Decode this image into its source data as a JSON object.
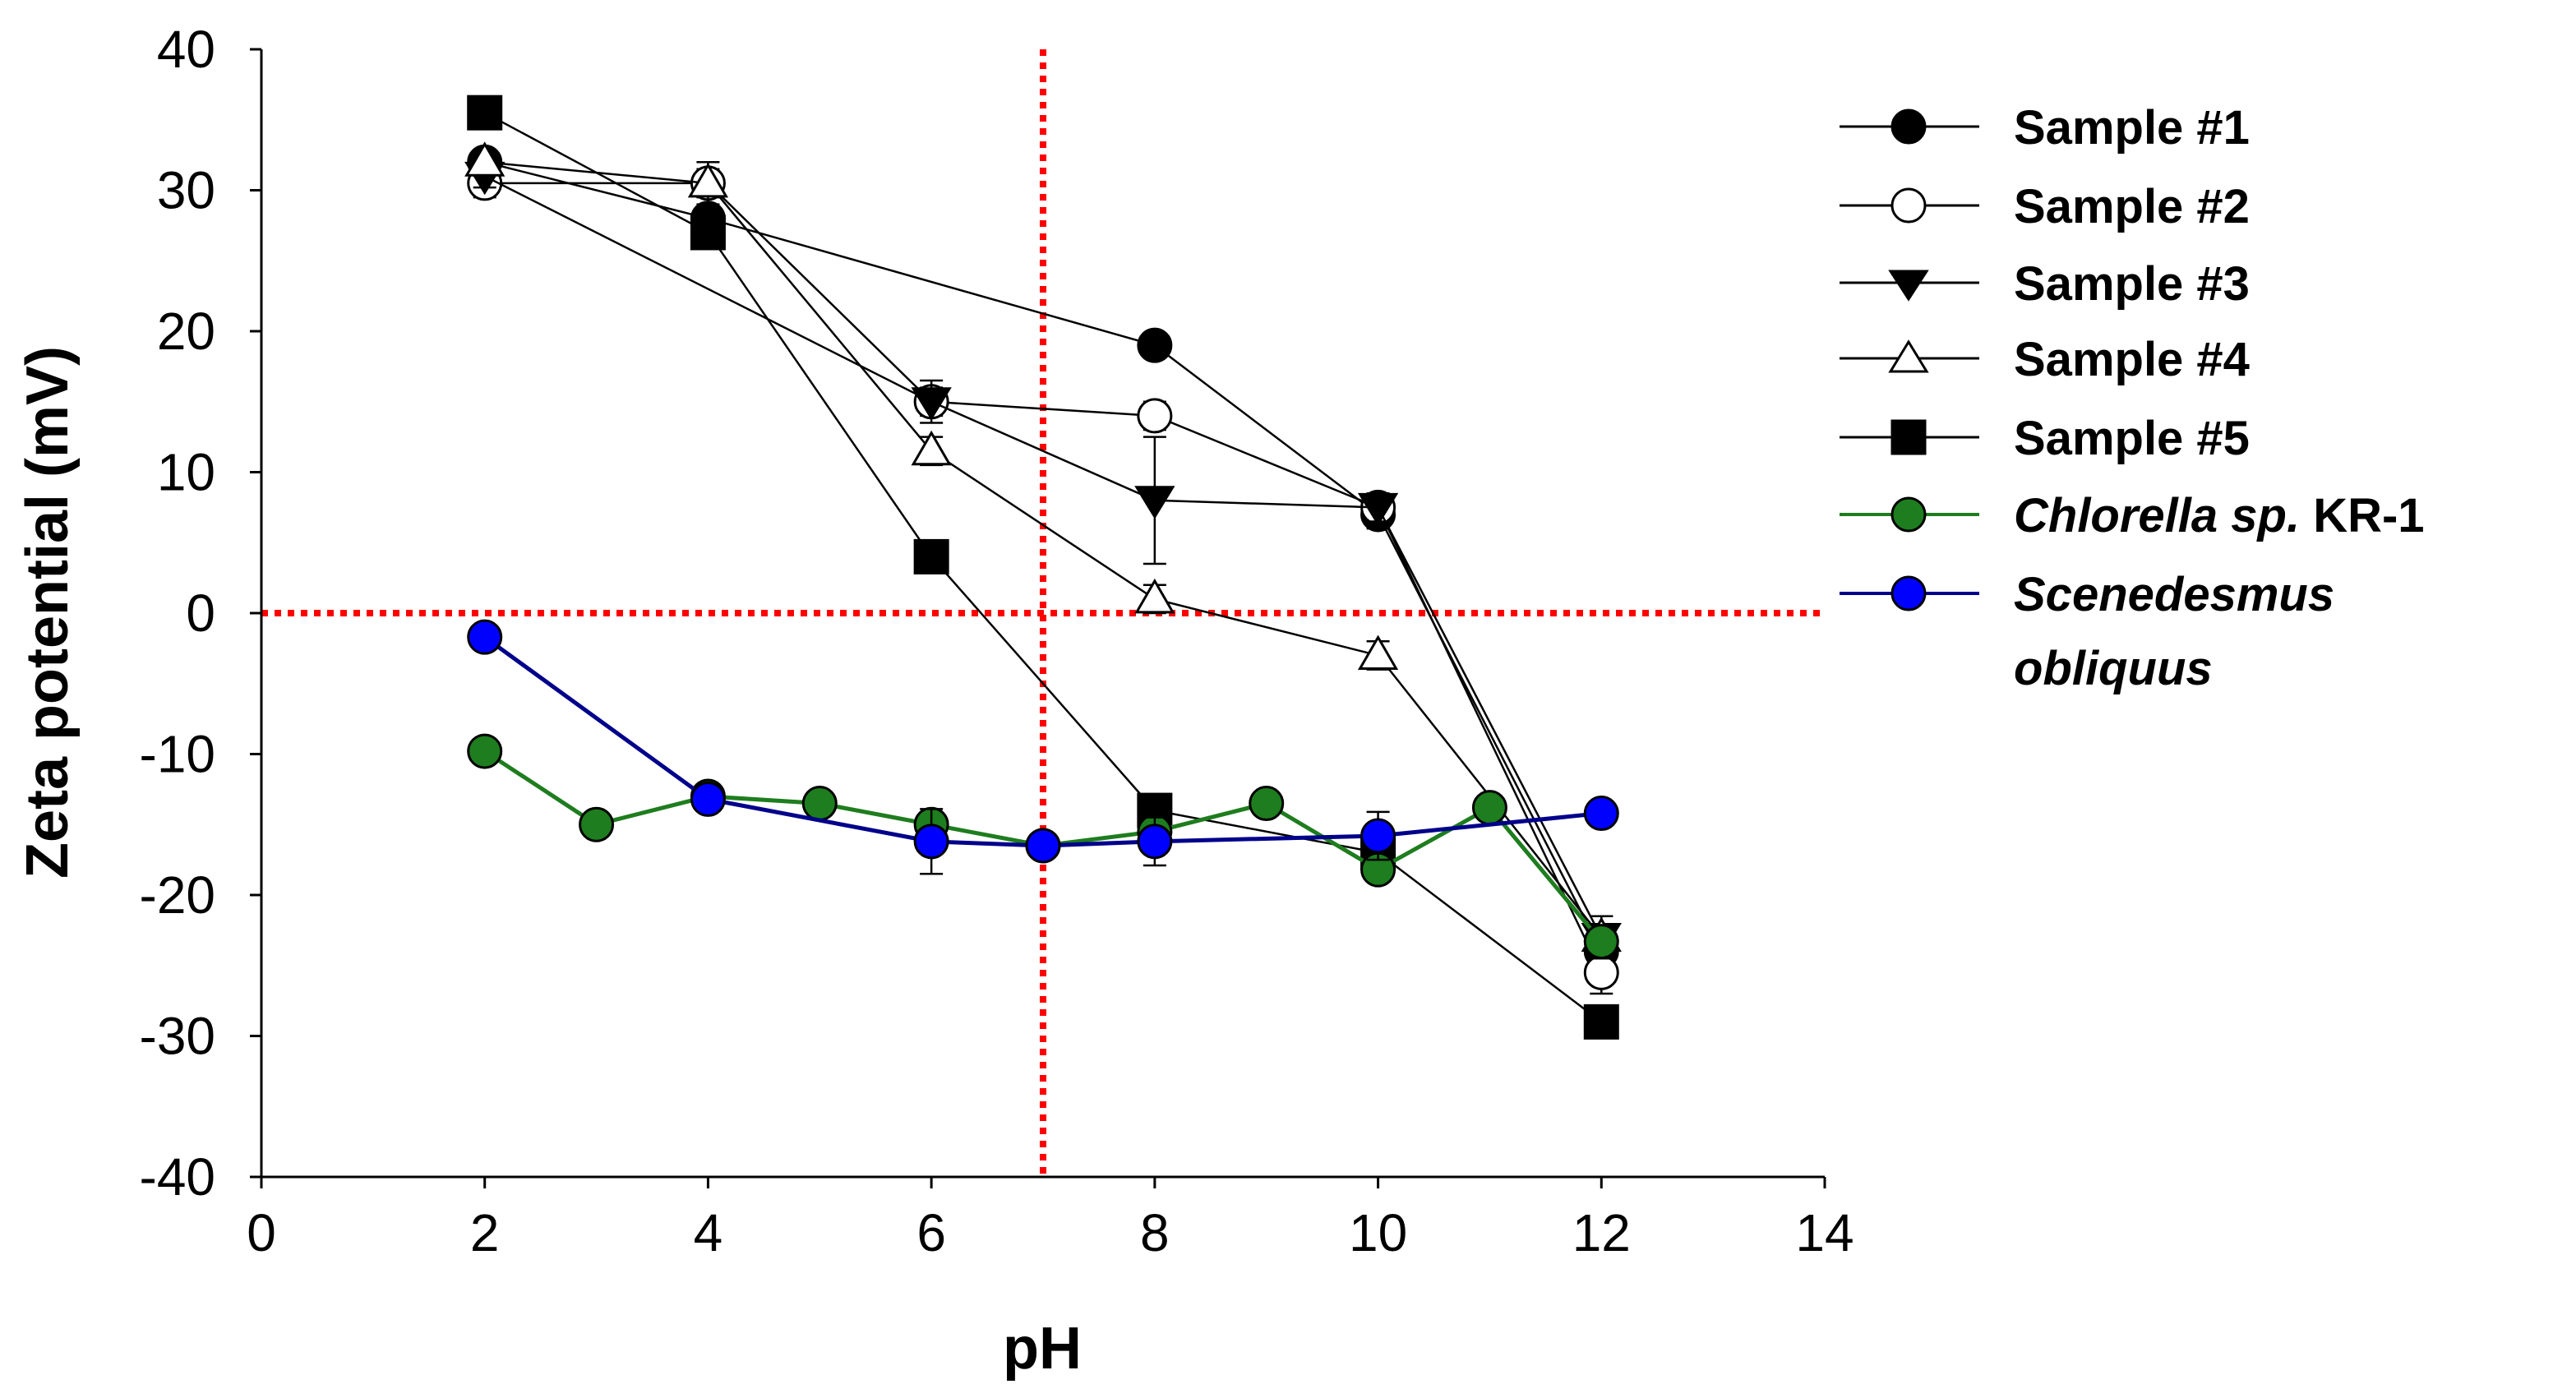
{
  "chart_data": {
    "type": "scatter",
    "title": "",
    "xlabel": "pH",
    "ylabel": "Zeta potential (mV)",
    "xlim": [
      0,
      14
    ],
    "ylim": [
      -40,
      40
    ],
    "xticks": [
      0,
      2,
      4,
      6,
      8,
      10,
      12,
      14
    ],
    "yticks": [
      -40,
      -30,
      -20,
      -10,
      0,
      10,
      20,
      30,
      40
    ],
    "grid": false,
    "legend_position": "right",
    "reference_lines": [
      {
        "orientation": "vertical",
        "value": 7,
        "color": "#ff0000",
        "style": "dotted"
      },
      {
        "orientation": "horizontal",
        "value": 0,
        "color": "#ff0000",
        "style": "dotted"
      }
    ],
    "series": [
      {
        "name": "Sample #1",
        "marker": "circle",
        "fill": "#000000",
        "line": "#000000",
        "x": [
          2,
          4,
          8,
          10,
          12
        ],
        "y": [
          32,
          28,
          19,
          7,
          -24
        ],
        "err": [
          0.8,
          0.8,
          0.8,
          1,
          1.5
        ]
      },
      {
        "name": "Sample #2",
        "marker": "circle",
        "fill": "#ffffff",
        "line": "#000000",
        "x": [
          2,
          4,
          6,
          8,
          10,
          12
        ],
        "y": [
          30.5,
          30.5,
          15,
          14,
          7.5,
          -25.5
        ],
        "err": [
          1,
          1,
          1,
          1,
          1,
          1.5
        ]
      },
      {
        "name": "Sample #3",
        "marker": "triangle-down",
        "fill": "#000000",
        "line": "#000000",
        "x": [
          2,
          6,
          8,
          10,
          12
        ],
        "y": [
          31,
          15,
          8,
          7.5,
          -23
        ],
        "err": [
          0.8,
          1.5,
          4.5,
          1,
          1.5
        ]
      },
      {
        "name": "Sample #4",
        "marker": "triangle-up",
        "fill": "#ffffff",
        "line": "#000000",
        "x": [
          2,
          4,
          6,
          8,
          10,
          12
        ],
        "y": [
          32,
          30.5,
          11.5,
          1,
          -3,
          -23
        ],
        "err": [
          0.8,
          1.5,
          1,
          1,
          1,
          1.5
        ]
      },
      {
        "name": "Sample #5",
        "marker": "square",
        "fill": "#000000",
        "line": "#000000",
        "x": [
          2,
          4,
          6,
          8,
          10,
          12
        ],
        "y": [
          35.5,
          27,
          4,
          -14,
          -17,
          -29
        ],
        "err": [
          0.8,
          1,
          0.8,
          1,
          1,
          1
        ]
      },
      {
        "name": "Chlorella sp. KR-1",
        "marker": "circle",
        "fill": "#1e7d1e",
        "line": "#1e7d1e",
        "x": [
          2,
          3,
          4,
          5,
          6,
          7,
          8,
          9,
          10,
          11,
          12
        ],
        "y": [
          -9.8,
          -15,
          -13,
          -13.5,
          -15,
          -16.5,
          -15.5,
          -13.5,
          -18.2,
          -13.8,
          -23.3
        ],
        "err": [
          0,
          0,
          0,
          0,
          0,
          0,
          0,
          0,
          0,
          0,
          0
        ]
      },
      {
        "name": "Scenedesmus obliquus",
        "marker": "circle",
        "fill": "#0000ff",
        "line": "#00008b",
        "x": [
          2,
          4,
          6,
          7,
          8,
          10,
          12
        ],
        "y": [
          -1.7,
          -13.2,
          -16.2,
          -16.5,
          -16.2,
          -15.8,
          -14.2
        ],
        "err": [
          0,
          0,
          2.3,
          0,
          1.7,
          1.7,
          0
        ]
      }
    ]
  },
  "legend": {
    "items": [
      {
        "label": "Sample #1"
      },
      {
        "label": "Sample #2"
      },
      {
        "label": "Sample #3"
      },
      {
        "label": "Sample #4"
      },
      {
        "label": "Sample #5"
      },
      {
        "label_italic": "Chlorella sp.",
        "label_rest": " KR-1"
      },
      {
        "label_line1": "Scenedesmus",
        "label_line2": "obliquus"
      }
    ]
  }
}
